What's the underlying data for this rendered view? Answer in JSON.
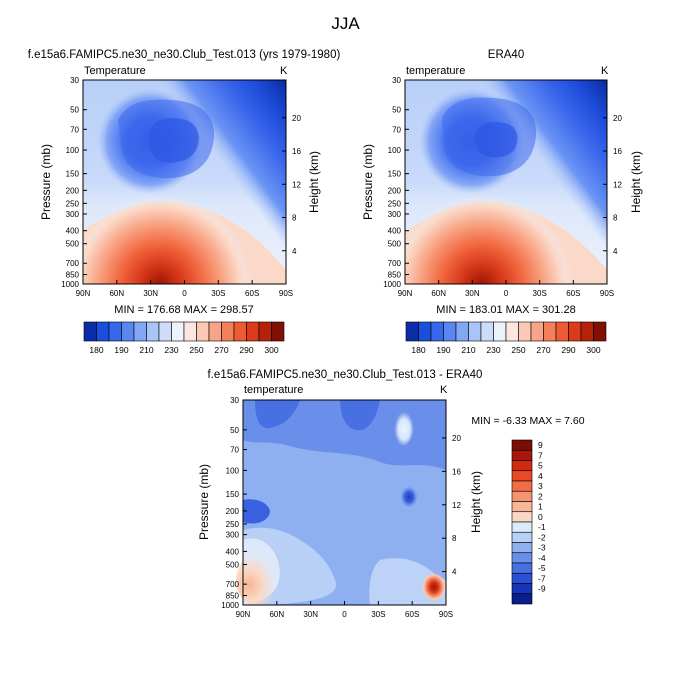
{
  "page_title": "JJA",
  "chart_data": [
    {
      "type": "heatmap",
      "title": "f.e15a6.FAMIPC5.ne30_ne30.Club_Test.013 (yrs 1979-1980)",
      "field_label": "Temperature",
      "units": "K",
      "ylabel": "Pressure (mb)",
      "y2label": "Height (km)",
      "xticks": [
        "90N",
        "60N",
        "30N",
        "0",
        "30S",
        "60S",
        "90S"
      ],
      "yticks": [
        "30",
        "50",
        "70",
        "100",
        "150",
        "200",
        "250",
        "300",
        "400",
        "500",
        "700",
        "850",
        "1000"
      ],
      "y2ticks": [
        "20",
        "16",
        "12",
        "8",
        "4"
      ],
      "stats_text": "MIN = 176.68   MAX = 298.57",
      "min": 176.68,
      "max": 298.57,
      "colorbar": {
        "levels": [
          "180",
          "190",
          "210",
          "230",
          "250",
          "270",
          "290",
          "300"
        ],
        "colors": [
          "#0c2da8",
          "#1a4fdc",
          "#3568ec",
          "#5a86f2",
          "#84a7f5",
          "#a9c4f8",
          "#cddcfa",
          "#eef2fc",
          "#fce6df",
          "#fbc9b5",
          "#f8a486",
          "#f47f5b",
          "#ee5a34",
          "#dd3a19",
          "#b4220a",
          "#820f03"
        ]
      }
    },
    {
      "type": "heatmap",
      "title": "ERA40",
      "field_label": "temperature",
      "units": "K",
      "ylabel": "Pressure (mb)",
      "y2label": "Height (km)",
      "xticks": [
        "90N",
        "60N",
        "30N",
        "0",
        "30S",
        "60S",
        "90S"
      ],
      "yticks": [
        "30",
        "50",
        "70",
        "100",
        "150",
        "200",
        "250",
        "300",
        "400",
        "500",
        "700",
        "850",
        "1000"
      ],
      "y2ticks": [
        "20",
        "16",
        "12",
        "8",
        "4"
      ],
      "stats_text": "MIN = 183.01   MAX = 301.28",
      "min": 183.01,
      "max": 301.28,
      "colorbar": {
        "levels": [
          "180",
          "190",
          "210",
          "230",
          "250",
          "270",
          "290",
          "300"
        ],
        "colors": [
          "#0c2da8",
          "#1a4fdc",
          "#3568ec",
          "#5a86f2",
          "#84a7f5",
          "#a9c4f8",
          "#cddcfa",
          "#eef2fc",
          "#fce6df",
          "#fbc9b5",
          "#f8a486",
          "#f47f5b",
          "#ee5a34",
          "#dd3a19",
          "#b4220a",
          "#820f03"
        ]
      }
    },
    {
      "type": "heatmap",
      "title": "f.e15a6.FAMIPC5.ne30_ne30.Club_Test.013 - ERA40",
      "field_label": "temperature",
      "units": "K",
      "ylabel": "Pressure (mb)",
      "y2label": "Height (km)",
      "xticks": [
        "90N",
        "60N",
        "30N",
        "0",
        "30S",
        "60S",
        "90S"
      ],
      "yticks": [
        "30",
        "50",
        "70",
        "100",
        "150",
        "200",
        "250",
        "300",
        "400",
        "500",
        "700",
        "850",
        "1000"
      ],
      "y2ticks": [
        "20",
        "16",
        "12",
        "8",
        "4"
      ],
      "stats_text": "MIN =  -6.33   MAX =   7.60",
      "min": -6.33,
      "max": 7.6,
      "colorbar": {
        "levels": [
          "9",
          "7",
          "5",
          "4",
          "3",
          "2",
          "1",
          "0",
          "-1",
          "-2",
          "-3",
          "-4",
          "-5",
          "-7",
          "-9"
        ],
        "colors": [
          "#7a0d06",
          "#a8180a",
          "#d02a12",
          "#e84a26",
          "#f16e44",
          "#f59470",
          "#f8b798",
          "#fbd8c4",
          "#ddeafb",
          "#b8cff6",
          "#8fb0f0",
          "#6a8fea",
          "#4970e2",
          "#2b50d4",
          "#1634b8",
          "#0a1d8a"
        ]
      }
    }
  ]
}
